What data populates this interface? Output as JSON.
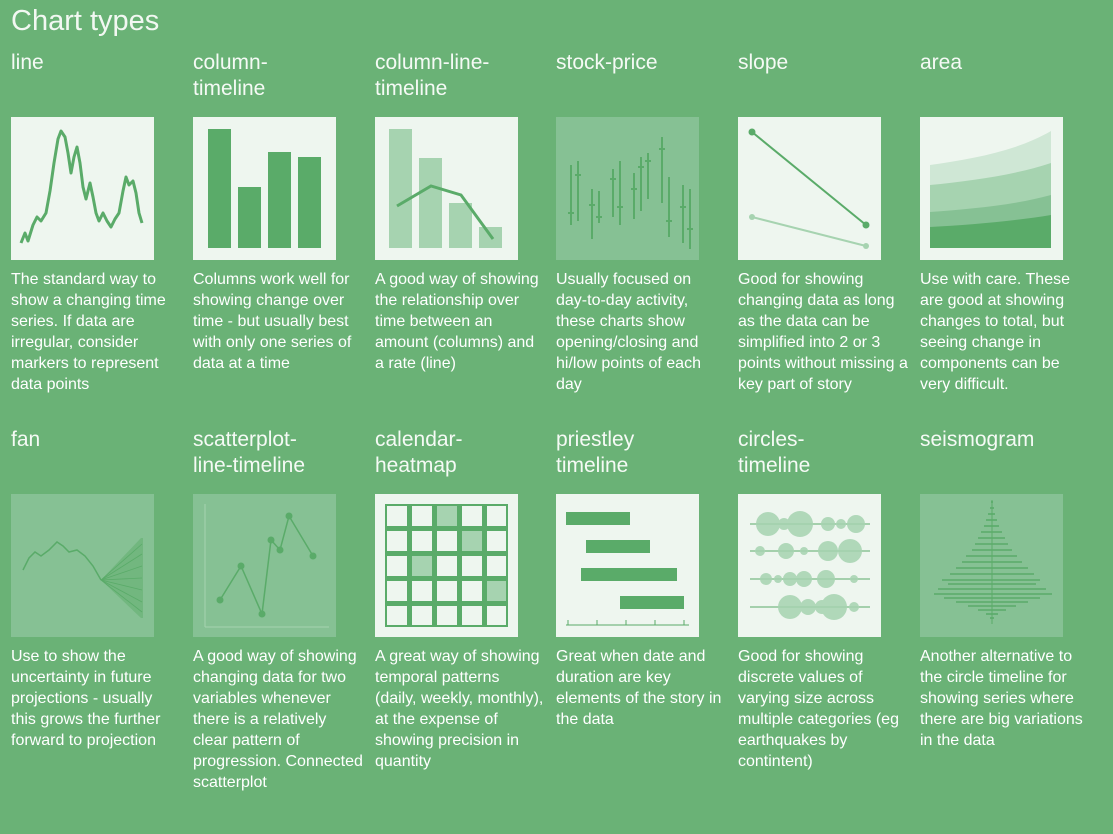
{
  "page_title": "Chart types",
  "cards": [
    {
      "title": "line",
      "description": "The standard way to show a changing time series. If data are irregular, consider markers to represent data points"
    },
    {
      "title": "column-\ntimeline",
      "description": "Columns work well for showing change over time - but usually best with only one series of data at a time"
    },
    {
      "title": "column-line-\ntimeline",
      "description": "A good way of showing the relationship over time between an amount (columns) and a rate (line)"
    },
    {
      "title": "stock-price",
      "description": "Usually focused on day-to-day activity, these charts show opening/closing and hi/low points of each day"
    },
    {
      "title": "slope",
      "description": "Good for showing changing data as long as the data can be simplified into 2 or 3 points without missing a key part of story"
    },
    {
      "title": "area",
      "description": "Use with care. These are good at showing changes to total, but seeing change in components can be very difficult."
    },
    {
      "title": "fan",
      "description": "Use to show the uncertainty in future projections - usually this grows the further forward to projection"
    },
    {
      "title": "scatterplot-\nline-timeline",
      "description": "A good way of showing changing data for two variables whenever there is a relatively clear pattern of progression. Connected scatterplot"
    },
    {
      "title": "calendar-\nheatmap",
      "description": "A great way of showing temporal patterns (daily, weekly, monthly), at the expense of showing precision in quantity"
    },
    {
      "title": "priestley\ntimeline",
      "description": "Great when date and duration are key elements of the story in the data"
    },
    {
      "title": "circles-\ntimeline",
      "description": "Good for showing discrete values of varying size across multiple categories (eg earthquakes by contintent)"
    },
    {
      "title": "seismogram",
      "description": "Another alternative to the circle timeline for showing series where there are big variations in the data"
    }
  ],
  "colors": {
    "background": "#6ab276",
    "thumb_light": "#eef6ef",
    "thumb_dark": "#86c194",
    "mark": "#5aab69",
    "mark_light": "#bfe0c6"
  }
}
